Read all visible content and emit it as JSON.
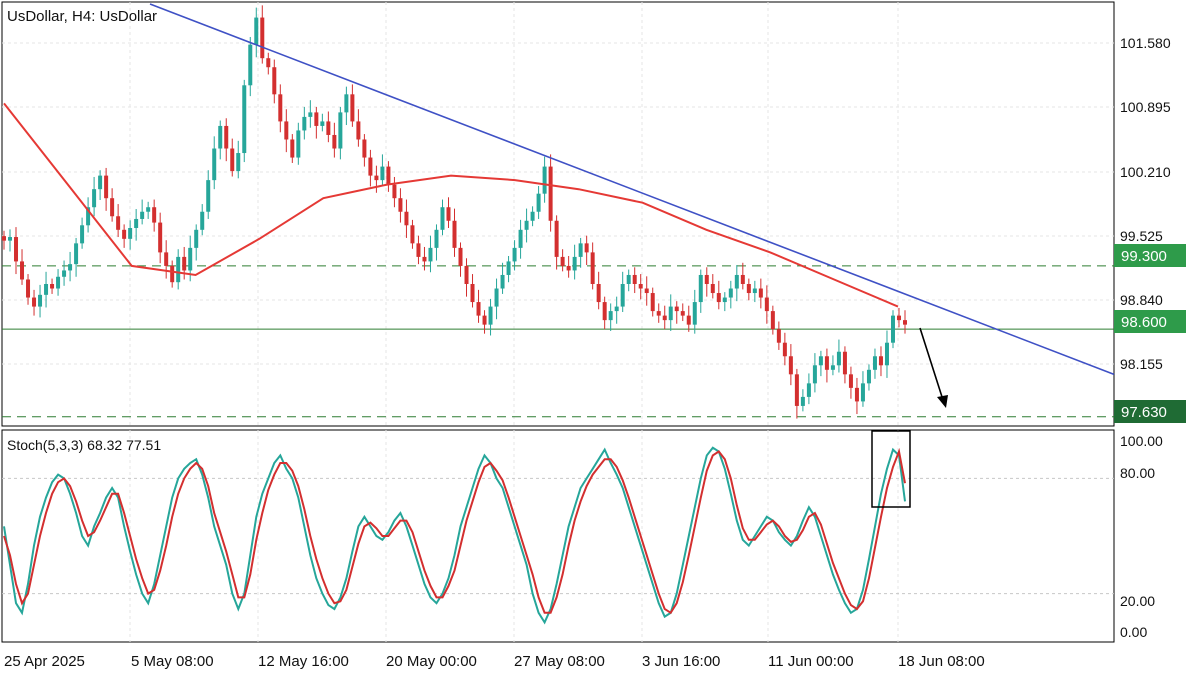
{
  "chart_data": [
    {
      "type": "candlestick",
      "symbol": "UsDollar",
      "title": "UsDollar, H4:  UsDollar",
      "y_ticks": [
        "101.580",
        "100.895",
        "100.210",
        "99.525",
        "98.840",
        "98.155"
      ],
      "ylim": [
        97.55,
        102.2
      ],
      "x_ticks": [
        "25 Apr 2025",
        "5 May 08:00",
        "12 May 16:00",
        "20 May 00:00",
        "27 May 08:00",
        "3 Jun 16:00",
        "11 Jun 00:00",
        "18 Jun 08:00"
      ],
      "bar_count": 151,
      "closes": [
        99.58,
        99.62,
        99.35,
        99.15,
        98.95,
        98.85,
        98.98,
        99.1,
        99.05,
        99.18,
        99.25,
        99.32,
        99.55,
        99.75,
        99.95,
        100.15,
        100.3,
        100.05,
        99.85,
        99.7,
        99.6,
        99.72,
        99.82,
        99.9,
        99.95,
        99.78,
        99.45,
        99.3,
        99.12,
        99.4,
        99.25,
        99.5,
        99.7,
        99.9,
        100.25,
        100.6,
        100.85,
        100.6,
        100.35,
        100.55,
        101.3,
        101.75,
        102.05,
        101.6,
        101.5,
        101.2,
        100.9,
        100.7,
        100.5,
        100.8,
        100.95,
        101.0,
        100.85,
        100.9,
        100.75,
        100.6,
        101.0,
        101.2,
        100.9,
        100.7,
        100.5,
        100.3,
        100.25,
        100.4,
        100.2,
        100.05,
        99.9,
        99.75,
        99.55,
        99.4,
        99.35,
        99.5,
        99.7,
        99.95,
        99.8,
        99.5,
        99.3,
        99.1,
        98.9,
        98.75,
        98.65,
        98.85,
        99.05,
        99.2,
        99.35,
        99.5,
        99.7,
        99.8,
        99.9,
        100.1,
        100.4,
        99.8,
        99.4,
        99.3,
        99.25,
        99.4,
        99.55,
        99.45,
        99.1,
        98.9,
        98.7,
        98.8,
        98.85,
        99.1,
        99.2,
        99.1,
        99.05,
        99.0,
        98.8,
        98.75,
        98.7,
        98.85,
        98.8,
        98.75,
        98.65,
        98.9,
        99.2,
        99.1,
        99.0,
        98.9,
        98.95,
        99.05,
        99.2,
        99.1,
        99.0,
        99.05,
        98.95,
        98.8,
        98.6,
        98.45,
        98.3,
        98.1,
        97.75,
        97.85,
        98.0,
        98.2,
        98.3,
        98.15,
        98.2,
        98.35,
        98.1,
        97.95,
        97.8,
        98.0,
        98.15,
        98.3,
        98.2,
        98.45,
        98.75,
        98.7,
        98.65
      ],
      "moving_average": {
        "values": [
          101.1,
          100.2,
          99.3,
          99.2,
          99.6,
          100.05,
          100.2,
          100.3,
          100.25,
          100.15,
          100.0,
          99.7,
          99.45,
          99.15,
          98.85
        ]
      },
      "trendline": {
        "from": 102.2,
        "to": 98.1
      },
      "horizontal_levels": [
        {
          "value": "99.300",
          "style": "dashed",
          "label_color": "#2e9b4a"
        },
        {
          "value": "98.600",
          "style": "solid",
          "label_color": "#2e9b4a"
        },
        {
          "value": "97.630",
          "style": "dashed",
          "label_color": "#1f6b34"
        }
      ],
      "annotation": "arrow pointing down",
      "colors": {
        "bull": "#26a69a",
        "bear": "#d32f2f",
        "ma": "#e53935",
        "trendline": "#3f51c5",
        "levels": "#2e7d32"
      }
    },
    {
      "type": "line",
      "indicator": "Stoch(5,3,3)",
      "label": "Stoch(5,3,3) 68.32 77.51",
      "y_ticks": [
        "100.00",
        "80.00",
        "20.00",
        "0.00"
      ],
      "ylim": [
        0,
        100
      ],
      "series": [
        {
          "color": "#26a69a",
          "values": [
            55,
            35,
            15,
            10,
            25,
            45,
            60,
            70,
            78,
            82,
            80,
            72,
            62,
            50,
            45,
            55,
            62,
            70,
            75,
            70,
            55,
            42,
            30,
            20,
            15,
            25,
            40,
            55,
            70,
            80,
            85,
            88,
            90,
            82,
            70,
            55,
            45,
            35,
            20,
            12,
            20,
            40,
            60,
            72,
            80,
            88,
            92,
            85,
            80,
            70,
            55,
            40,
            28,
            20,
            14,
            12,
            18,
            28,
            42,
            55,
            60,
            55,
            50,
            48,
            52,
            58,
            62,
            55,
            45,
            35,
            25,
            18,
            15,
            20,
            28,
            40,
            55,
            65,
            75,
            85,
            92,
            88,
            80,
            75,
            65,
            55,
            45,
            35,
            20,
            10,
            5,
            12,
            25,
            40,
            55,
            65,
            75,
            80,
            85,
            90,
            95,
            88,
            82,
            75,
            65,
            55,
            45,
            35,
            25,
            15,
            8,
            10,
            20,
            35,
            50,
            65,
            80,
            92,
            96,
            94,
            85,
            72,
            58,
            48,
            45,
            50,
            55,
            60,
            58,
            52,
            48,
            45,
            50,
            58,
            65,
            60,
            50,
            40,
            30,
            22,
            15,
            10,
            12,
            22,
            38,
            55,
            72,
            85,
            95,
            92,
            68
          ]
        },
        {
          "color": "#d32f2f",
          "values": [
            50,
            40,
            25,
            15,
            20,
            35,
            50,
            62,
            72,
            78,
            80,
            76,
            68,
            58,
            50,
            52,
            58,
            65,
            72,
            72,
            62,
            50,
            38,
            28,
            20,
            22,
            32,
            45,
            60,
            72,
            80,
            85,
            88,
            85,
            76,
            62,
            52,
            42,
            30,
            18,
            18,
            30,
            48,
            62,
            74,
            82,
            88,
            88,
            84,
            76,
            64,
            50,
            38,
            28,
            20,
            15,
            16,
            22,
            34,
            46,
            55,
            57,
            54,
            50,
            50,
            54,
            58,
            58,
            52,
            42,
            32,
            24,
            18,
            18,
            24,
            32,
            45,
            58,
            68,
            78,
            86,
            88,
            84,
            79,
            70,
            60,
            50,
            40,
            30,
            18,
            10,
            10,
            18,
            30,
            45,
            58,
            68,
            76,
            82,
            86,
            90,
            90,
            86,
            79,
            70,
            60,
            50,
            40,
            30,
            20,
            12,
            10,
            15,
            26,
            40,
            55,
            70,
            84,
            92,
            94,
            90,
            80,
            66,
            54,
            48,
            48,
            52,
            56,
            58,
            55,
            50,
            47,
            48,
            53,
            60,
            62,
            56,
            46,
            36,
            28,
            20,
            14,
            12,
            16,
            28,
            44,
            60,
            75,
            86,
            94,
            77.5
          ]
        }
      ],
      "highlight": "box"
    }
  ],
  "chart": {
    "title": "UsDollar, H4:  UsDollar",
    "price_ticks": [
      "101.580",
      "100.895",
      "100.210",
      "99.525",
      "98.840",
      "98.155"
    ],
    "price_badges": [
      "99.300",
      "98.600",
      "97.630"
    ],
    "stoch_label": "Stoch(5,3,3) 68.32 77.51",
    "stoch_ticks": [
      "100.00",
      "80.00",
      "20.00",
      "0.00"
    ],
    "x_ticks": [
      "25 Apr 2025",
      "5 May 08:00",
      "12 May 16:00",
      "20 May 00:00",
      "27 May 08:00",
      "3 Jun 16:00",
      "11 Jun 00:00",
      "18 Jun 08:00"
    ]
  }
}
